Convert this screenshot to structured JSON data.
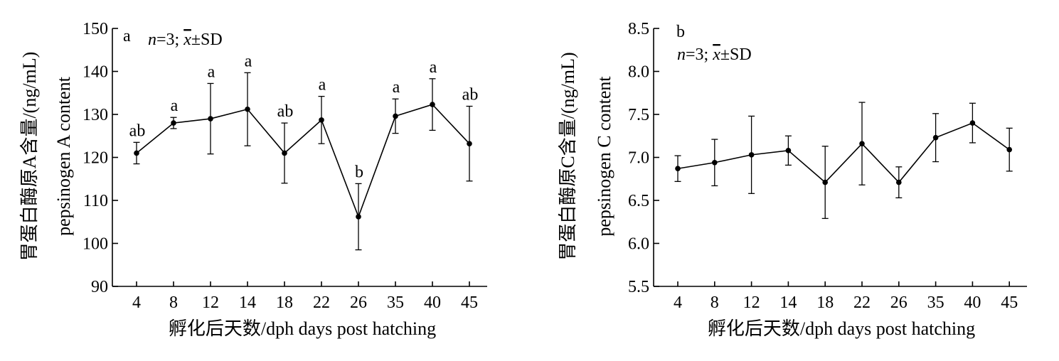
{
  "chart_data": [
    {
      "type": "line",
      "panel_label": "a",
      "annotation": {
        "n": "n",
        "rest": "=3; ",
        "xbar": "x",
        "pm_sd": "±SD"
      },
      "xlabel": "孵化后天数/dph days post hatching",
      "ylabel_cn": "胃蛋白酶原A含量/(ng/mL)",
      "ylabel_en": "pepsinogen A content",
      "categories": [
        "4",
        "8",
        "12",
        "14",
        "18",
        "22",
        "26",
        "35",
        "40",
        "45"
      ],
      "values": [
        121,
        128,
        129,
        131.2,
        121,
        128.7,
        106.2,
        129.6,
        132.3,
        123.2
      ],
      "error": [
        2.5,
        1.3,
        8.2,
        8.5,
        7,
        5.5,
        7.7,
        4,
        6,
        8.7
      ],
      "letters": [
        "ab",
        "a",
        "a",
        "a",
        "ab",
        "a",
        "b",
        "a",
        "a",
        "ab"
      ],
      "ylim": [
        90,
        150
      ],
      "yticks": [
        "90",
        "100",
        "110",
        "120",
        "130",
        "140",
        "150"
      ],
      "grid": false
    },
    {
      "type": "line",
      "panel_label": "b",
      "annotation": {
        "n": "n",
        "rest": "=3; ",
        "xbar": "x",
        "pm_sd": "±SD"
      },
      "xlabel": "孵化后天数/dph days post hatching",
      "ylabel_cn": "胃蛋白酶原C含量/(ng/mL)",
      "ylabel_en": "pepsinogen C content",
      "categories": [
        "4",
        "8",
        "12",
        "14",
        "18",
        "22",
        "26",
        "35",
        "40",
        "45"
      ],
      "values": [
        6.87,
        6.94,
        7.03,
        7.08,
        6.71,
        7.16,
        6.71,
        7.23,
        7.4,
        7.09
      ],
      "error": [
        0.15,
        0.27,
        0.45,
        0.17,
        0.42,
        0.48,
        0.18,
        0.28,
        0.23,
        0.25
      ],
      "letters": [],
      "ylim": [
        5.5,
        8.5
      ],
      "yticks": [
        "5.5",
        "6.0",
        "6.5",
        "7.0",
        "7.5",
        "8.0",
        "8.5"
      ],
      "grid": false
    }
  ]
}
